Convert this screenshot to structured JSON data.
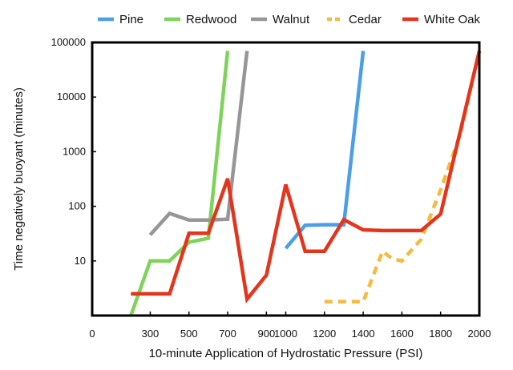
{
  "chart_data": {
    "type": "line",
    "title": "",
    "xlabel": "10-minute Application of Hydrostatic Pressure (PSI)",
    "ylabel": "Time negatively buoyant (minutes)",
    "xlim": [
      0,
      2000
    ],
    "ylim": [
      1,
      100000
    ],
    "yscale": "log",
    "grid": false,
    "legend": "top",
    "x_ticks": [
      0,
      300,
      500,
      700,
      900,
      1000,
      1200,
      1400,
      1600,
      1800,
      2000
    ],
    "x_tick_labels": [
      "0",
      "300",
      "500",
      "700",
      "900",
      "1000",
      "1200",
      "1400",
      "1600",
      "1800",
      "2000"
    ],
    "y_ticks": [
      10,
      100,
      1000,
      10000,
      100000
    ],
    "y_tick_labels": [
      "10",
      "100",
      "1000",
      "10000",
      "100000"
    ],
    "series": [
      {
        "name": "Pine",
        "color": "#4a9fe8",
        "dash": false,
        "points": [
          [
            1000,
            17
          ],
          [
            1100,
            45
          ],
          [
            1200,
            46
          ],
          [
            1300,
            46
          ],
          [
            1400,
            70000
          ]
        ]
      },
      {
        "name": "Redwood",
        "color": "#7ed35a",
        "dash": false,
        "points": [
          [
            200,
            1
          ],
          [
            300,
            10
          ],
          [
            400,
            10
          ],
          [
            500,
            22
          ],
          [
            600,
            26
          ],
          [
            700,
            70000
          ]
        ]
      },
      {
        "name": "Walnut",
        "color": "#969696",
        "dash": false,
        "points": [
          [
            300,
            30
          ],
          [
            400,
            74
          ],
          [
            500,
            56
          ],
          [
            600,
            56
          ],
          [
            700,
            58
          ],
          [
            800,
            70000
          ]
        ]
      },
      {
        "name": "Cedar",
        "color": "#f5bb3e",
        "dash": true,
        "points": [
          [
            1200,
            1.8
          ],
          [
            1300,
            1.8
          ],
          [
            1400,
            1.8
          ],
          [
            1500,
            15
          ],
          [
            1550,
            11
          ],
          [
            1600,
            10
          ],
          [
            1700,
            25
          ],
          [
            1800,
            200
          ],
          [
            1900,
            2000
          ],
          [
            2000,
            70000
          ]
        ]
      },
      {
        "name": "White Oak",
        "color": "#e5341b",
        "dash": false,
        "points": [
          [
            200,
            2.5
          ],
          [
            300,
            2.5
          ],
          [
            400,
            2.5
          ],
          [
            500,
            32
          ],
          [
            600,
            32
          ],
          [
            700,
            320
          ],
          [
            800,
            2
          ],
          [
            900,
            5.5
          ],
          [
            1000,
            250
          ],
          [
            1100,
            15
          ],
          [
            1200,
            15
          ],
          [
            1300,
            57
          ],
          [
            1400,
            37
          ],
          [
            1500,
            36
          ],
          [
            1600,
            36
          ],
          [
            1700,
            36
          ],
          [
            1800,
            72
          ],
          [
            2000,
            70000
          ]
        ]
      }
    ]
  }
}
